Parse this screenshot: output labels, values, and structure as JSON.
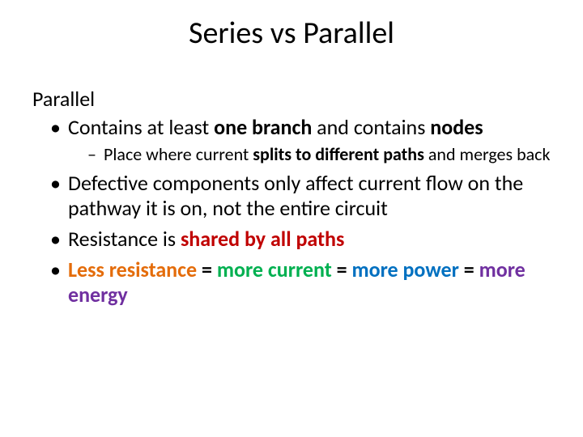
{
  "title": "Series vs Parallel",
  "subtitle": "Parallel",
  "bullets": {
    "b1_pre": "Contains at least ",
    "b1_bold": "one branch ",
    "b1_post": "and contains ",
    "b1_bold2": "nodes",
    "b1_sub_pre": "Place where current ",
    "b1_sub_bold": "splits to different paths ",
    "b1_sub_post": "and merges back",
    "b2": "Defective components only affect current flow on the pathway it is on, not the entire circuit",
    "b3_pre": "Resistance is ",
    "b3_red": "shared by all paths",
    "b4_orange": "Less resistance",
    "b4_eq1": " = ",
    "b4_green": "more current",
    "b4_eq2": " = ",
    "b4_blue": "more power",
    "b4_eq3": " = ",
    "b4_purple": "more energy"
  },
  "colors": {
    "red": "#c00000",
    "orange": "#e46c0a",
    "green": "#00b050",
    "blue": "#0070c0",
    "purple": "#7030a0",
    "text": "#000000",
    "background": "#ffffff"
  },
  "fonts": {
    "title_size": 38,
    "body_size": 26,
    "sub_size": 22,
    "family": "Calibri"
  }
}
